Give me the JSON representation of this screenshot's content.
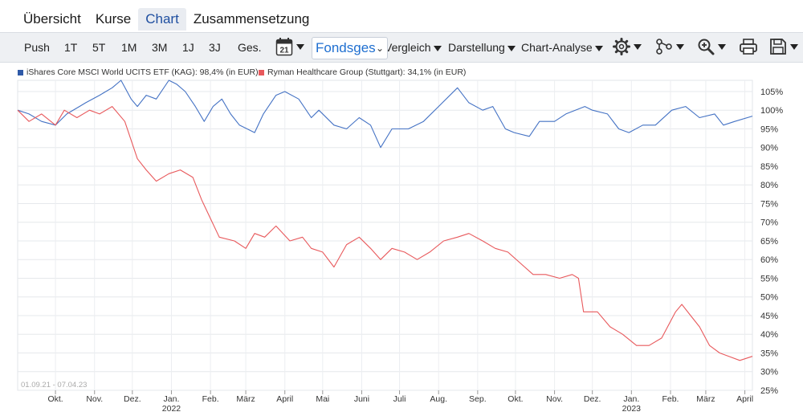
{
  "tabs": [
    "Übersicht",
    "Kurse",
    "Chart",
    "Zusammensetzung"
  ],
  "toolbar": {
    "ranges": [
      "Push",
      "1T",
      "5T",
      "1M",
      "3M",
      "1J",
      "3J",
      "Ges."
    ],
    "calendar_day": "21",
    "select_value": "Fondsges",
    "vergleich": "Vergleich",
    "darstellung": "Darstellung",
    "analyse": "Chart-Analyse"
  },
  "icons": [
    "calendar-icon",
    "gear-icon",
    "nodes-icon",
    "zoom-in-icon",
    "print-icon",
    "save-icon"
  ],
  "colors": {
    "series1": "#4472c4",
    "series2": "#e8595c",
    "accent": "#1f4fa0"
  },
  "chart_data": {
    "type": "line",
    "date_range": "01.09.21 - 07.04.23",
    "x_ticks": [
      "Okt.",
      "Nov.",
      "Dez.",
      "Jan.",
      "Feb.",
      "März",
      "April",
      "Mai",
      "Juni",
      "Juli",
      "Aug.",
      "Sep.",
      "Okt.",
      "Nov.",
      "Dez.",
      "Jan.",
      "Feb.",
      "März",
      "April"
    ],
    "year_labels": [
      "2022",
      "2023"
    ],
    "y_ticks": [
      "105%",
      "100%",
      "95%",
      "90%",
      "85%",
      "80%",
      "75%",
      "70%",
      "65%",
      "60%",
      "55%",
      "50%",
      "45%",
      "40%",
      "35%",
      "30%",
      "25%"
    ],
    "ylim": [
      25,
      108
    ],
    "grid": true,
    "legend_position": "top-left",
    "series": [
      {
        "name": "iShares Core MSCI World UCITS ETF (KAG): 98,4% (in EUR)",
        "points": [
          [
            "2021-09-01",
            100
          ],
          [
            "2021-09-10",
            99
          ],
          [
            "2021-09-20",
            97
          ],
          [
            "2021-10-01",
            96
          ],
          [
            "2021-10-10",
            99
          ],
          [
            "2021-10-20",
            101
          ],
          [
            "2021-10-25",
            102
          ],
          [
            "2021-11-05",
            104
          ],
          [
            "2021-11-15",
            106
          ],
          [
            "2021-11-22",
            108
          ],
          [
            "2021-11-30",
            103
          ],
          [
            "2021-12-05",
            101
          ],
          [
            "2021-12-12",
            104
          ],
          [
            "2021-12-20",
            103
          ],
          [
            "2021-12-30",
            108
          ],
          [
            "2022-01-05",
            107
          ],
          [
            "2022-01-12",
            105
          ],
          [
            "2022-01-20",
            101
          ],
          [
            "2022-01-27",
            97
          ],
          [
            "2022-02-03",
            101
          ],
          [
            "2022-02-10",
            103
          ],
          [
            "2022-02-17",
            99
          ],
          [
            "2022-02-24",
            96
          ],
          [
            "2022-03-08",
            94
          ],
          [
            "2022-03-15",
            99
          ],
          [
            "2022-03-25",
            104
          ],
          [
            "2022-04-01",
            105
          ],
          [
            "2022-04-12",
            103
          ],
          [
            "2022-04-22",
            98
          ],
          [
            "2022-04-28",
            100
          ],
          [
            "2022-05-10",
            96
          ],
          [
            "2022-05-20",
            95
          ],
          [
            "2022-05-30",
            98
          ],
          [
            "2022-06-08",
            96
          ],
          [
            "2022-06-16",
            90
          ],
          [
            "2022-06-25",
            95
          ],
          [
            "2022-07-08",
            95
          ],
          [
            "2022-07-20",
            97
          ],
          [
            "2022-08-01",
            101
          ],
          [
            "2022-08-16",
            106
          ],
          [
            "2022-08-25",
            102
          ],
          [
            "2022-09-05",
            100
          ],
          [
            "2022-09-13",
            101
          ],
          [
            "2022-09-23",
            95
          ],
          [
            "2022-09-30",
            94
          ],
          [
            "2022-10-12",
            93
          ],
          [
            "2022-10-20",
            97
          ],
          [
            "2022-11-01",
            97
          ],
          [
            "2022-11-10",
            99
          ],
          [
            "2022-11-25",
            101
          ],
          [
            "2022-12-01",
            100
          ],
          [
            "2022-12-13",
            99
          ],
          [
            "2022-12-22",
            95
          ],
          [
            "2022-12-30",
            94
          ],
          [
            "2023-01-10",
            96
          ],
          [
            "2023-01-20",
            96
          ],
          [
            "2023-02-02",
            100
          ],
          [
            "2023-02-13",
            101
          ],
          [
            "2023-02-24",
            98
          ],
          [
            "2023-03-08",
            99
          ],
          [
            "2023-03-15",
            96
          ],
          [
            "2023-03-24",
            97
          ],
          [
            "2023-04-07",
            98.4
          ]
        ]
      },
      {
        "name": "Ryman Healthcare Group (Stuttgart): 34,1% (in EUR)",
        "points": [
          [
            "2021-09-01",
            100
          ],
          [
            "2021-09-10",
            97
          ],
          [
            "2021-09-20",
            99
          ],
          [
            "2021-10-01",
            96
          ],
          [
            "2021-10-08",
            100
          ],
          [
            "2021-10-18",
            98
          ],
          [
            "2021-10-28",
            100
          ],
          [
            "2021-11-05",
            99
          ],
          [
            "2021-11-15",
            101
          ],
          [
            "2021-11-25",
            97
          ],
          [
            "2021-12-05",
            87
          ],
          [
            "2021-12-12",
            84
          ],
          [
            "2021-12-20",
            81
          ],
          [
            "2021-12-30",
            83
          ],
          [
            "2022-01-08",
            84
          ],
          [
            "2022-01-18",
            82
          ],
          [
            "2022-01-25",
            76
          ],
          [
            "2022-02-01",
            71
          ],
          [
            "2022-02-08",
            66
          ],
          [
            "2022-02-20",
            65
          ],
          [
            "2022-03-01",
            63
          ],
          [
            "2022-03-08",
            67
          ],
          [
            "2022-03-16",
            66
          ],
          [
            "2022-03-25",
            69
          ],
          [
            "2022-04-05",
            65
          ],
          [
            "2022-04-15",
            66
          ],
          [
            "2022-04-22",
            63
          ],
          [
            "2022-05-01",
            62
          ],
          [
            "2022-05-10",
            58
          ],
          [
            "2022-05-20",
            64
          ],
          [
            "2022-05-30",
            66
          ],
          [
            "2022-06-08",
            63
          ],
          [
            "2022-06-16",
            60
          ],
          [
            "2022-06-25",
            63
          ],
          [
            "2022-07-05",
            62
          ],
          [
            "2022-07-15",
            60
          ],
          [
            "2022-07-25",
            62
          ],
          [
            "2022-08-05",
            65
          ],
          [
            "2022-08-16",
            66
          ],
          [
            "2022-08-25",
            67
          ],
          [
            "2022-09-05",
            65
          ],
          [
            "2022-09-15",
            63
          ],
          [
            "2022-09-25",
            62
          ],
          [
            "2022-10-05",
            59
          ],
          [
            "2022-10-15",
            56
          ],
          [
            "2022-10-25",
            56
          ],
          [
            "2022-11-05",
            55
          ],
          [
            "2022-11-15",
            56
          ],
          [
            "2022-11-20",
            55
          ],
          [
            "2022-11-24",
            46
          ],
          [
            "2022-12-05",
            46
          ],
          [
            "2022-12-15",
            42
          ],
          [
            "2022-12-25",
            40
          ],
          [
            "2023-01-05",
            37
          ],
          [
            "2023-01-15",
            37
          ],
          [
            "2023-01-25",
            39
          ],
          [
            "2023-02-05",
            46
          ],
          [
            "2023-02-10",
            48
          ],
          [
            "2023-02-17",
            45
          ],
          [
            "2023-02-24",
            42
          ],
          [
            "2023-03-04",
            37
          ],
          [
            "2023-03-12",
            35
          ],
          [
            "2023-03-20",
            34
          ],
          [
            "2023-03-28",
            33
          ],
          [
            "2023-04-07",
            34.1
          ]
        ]
      }
    ]
  }
}
